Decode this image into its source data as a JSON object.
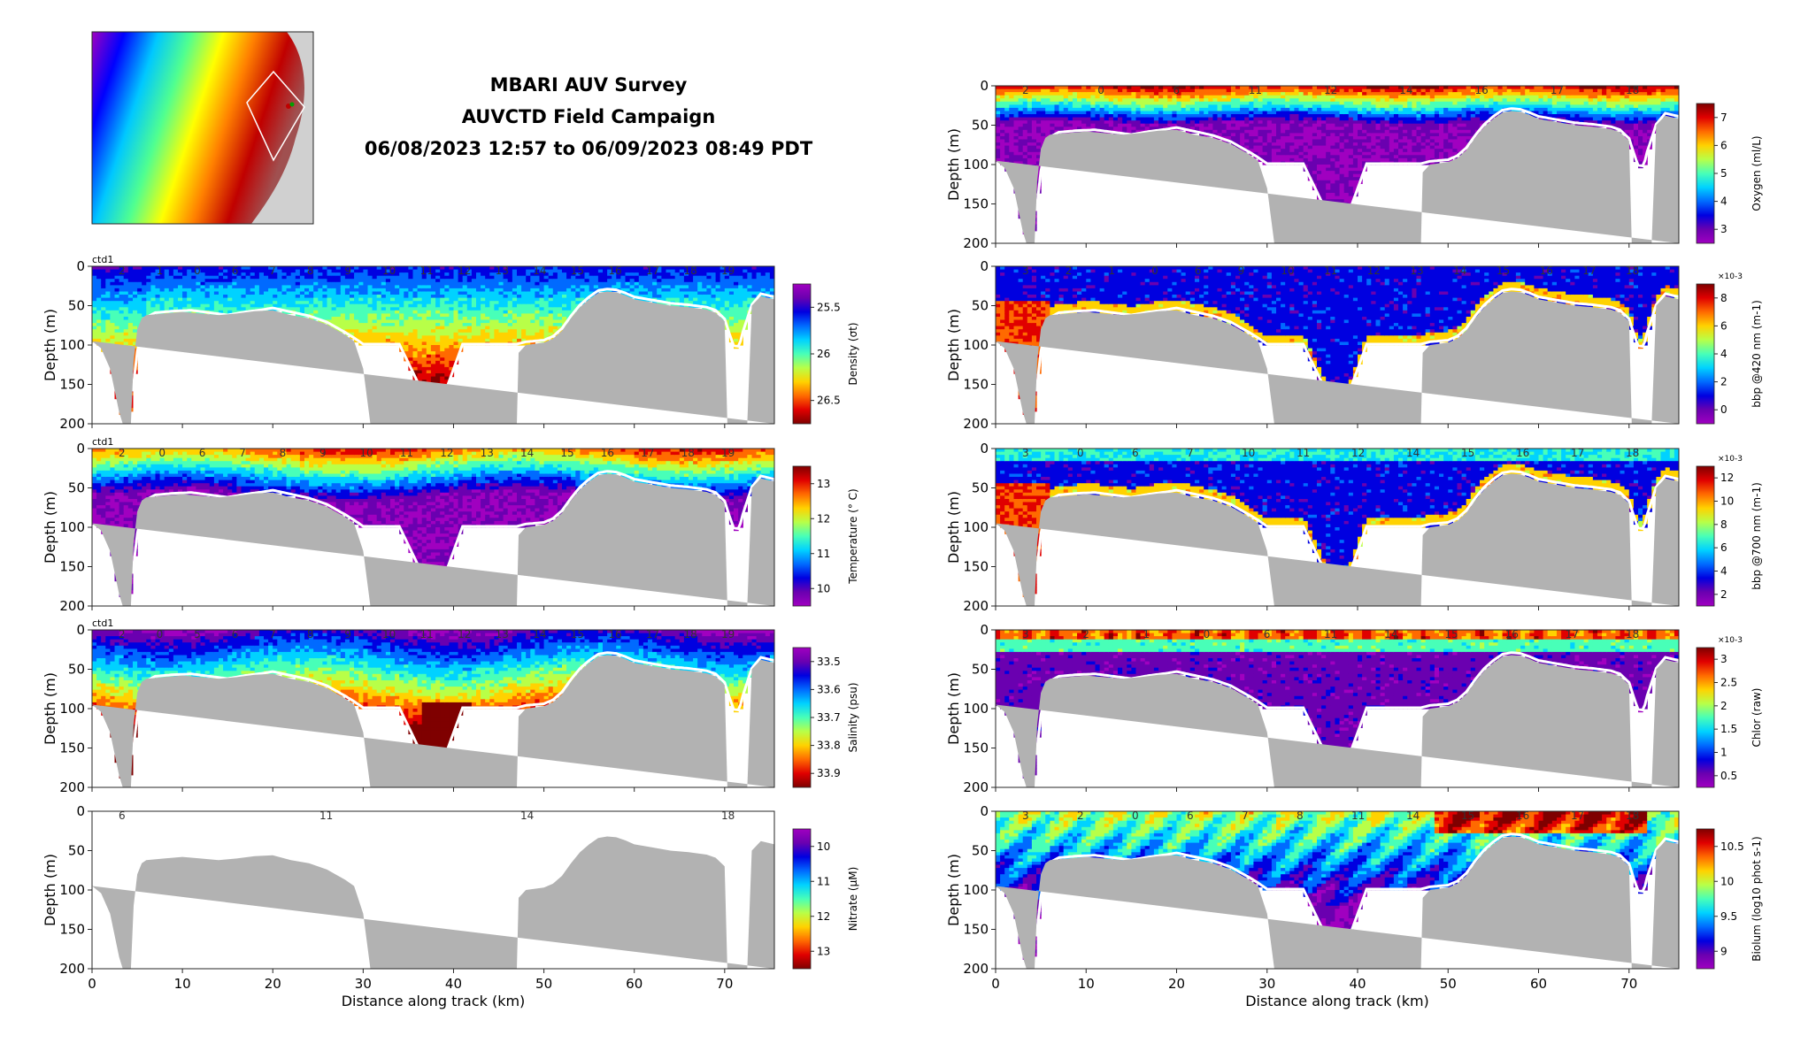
{
  "header": {
    "title": "MBARI AUV Survey",
    "campaign": "AUVCTD Field Campaign",
    "period": "06/08/2023 12:57 to 06/09/2023 08:49 PDT"
  },
  "colors": {
    "bathymetry": "#b2b2b2",
    "frame": "#262626"
  },
  "chart_data": [
    {
      "type": "heatmap",
      "panel": "density",
      "column": "left",
      "row": 1,
      "ylabel": "Depth (m)",
      "xlabel": "",
      "clabel": "Density (σt)",
      "xlim": [
        0,
        75.5
      ],
      "ylim": [
        200,
        0
      ],
      "xticks": [
        0,
        10,
        20,
        30,
        40,
        50,
        60,
        70
      ],
      "yticks": [
        0,
        50,
        100,
        150,
        200
      ],
      "cticks": [
        "25.5",
        "26",
        "26.5"
      ],
      "colormap": "jet_reversed",
      "corner_label": "ctd1",
      "profiles": [
        "2",
        "1",
        "0",
        "6",
        "7",
        "8",
        "9",
        "10",
        "11",
        "12",
        "13",
        "14",
        "15",
        "16",
        "17",
        "18",
        "19"
      ]
    },
    {
      "type": "heatmap",
      "panel": "temperature",
      "column": "left",
      "row": 2,
      "ylabel": "Depth (m)",
      "xlabel": "",
      "clabel": "Temperature (° C)",
      "xlim": [
        0,
        75.5
      ],
      "ylim": [
        200,
        0
      ],
      "xticks": [
        0,
        10,
        20,
        30,
        40,
        50,
        60,
        70
      ],
      "yticks": [
        0,
        50,
        100,
        150,
        200
      ],
      "cticks": [
        "13",
        "12",
        "11",
        "10"
      ],
      "colormap": "jet",
      "corner_label": "ctd1",
      "profiles": [
        "2",
        "0",
        "6",
        "7",
        "8",
        "9",
        "10",
        "11",
        "12",
        "13",
        "14",
        "15",
        "16",
        "17",
        "18",
        "19"
      ]
    },
    {
      "type": "heatmap",
      "panel": "salinity",
      "column": "left",
      "row": 3,
      "ylabel": "Depth (m)",
      "xlabel": "",
      "clabel": "Salinity (psu)",
      "xlim": [
        0,
        75.5
      ],
      "ylim": [
        200,
        0
      ],
      "xticks": [
        0,
        10,
        20,
        30,
        40,
        50,
        60,
        70
      ],
      "yticks": [
        0,
        50,
        100,
        150,
        200
      ],
      "cticks": [
        "33.5",
        "33.6",
        "33.7",
        "33.8",
        "33.9"
      ],
      "colormap": "jet_reversed",
      "corner_label": "ctd1",
      "profiles": [
        "2",
        "0",
        "5",
        "6",
        "7",
        "8",
        "9",
        "10",
        "11",
        "12",
        "13",
        "14",
        "15",
        "16",
        "17",
        "18",
        "19"
      ]
    },
    {
      "type": "heatmap",
      "panel": "nitrate",
      "column": "left",
      "row": 4,
      "ylabel": "Depth (m)",
      "xlabel": "Distance along track (km)",
      "clabel": "Nitrate (μM)",
      "xlim": [
        0,
        75.5
      ],
      "ylim": [
        200,
        0
      ],
      "xticks": [
        0,
        10,
        20,
        30,
        40,
        50,
        60,
        70
      ],
      "yticks": [
        0,
        50,
        100,
        150,
        200
      ],
      "cticks": [
        "10",
        "11",
        "12",
        "13"
      ],
      "colormap": "jet_reversed",
      "corner_label": "",
      "profiles": [
        "6",
        "11",
        "14",
        "18"
      ],
      "empty": true
    },
    {
      "type": "heatmap",
      "panel": "oxygen",
      "column": "right",
      "row": 0,
      "ylabel": "Depth (m)",
      "xlabel": "",
      "clabel": "Oxygen (ml/L)",
      "xlim": [
        0,
        75.5
      ],
      "ylim": [
        200,
        0
      ],
      "xticks": [
        0,
        10,
        20,
        30,
        40,
        50,
        60,
        70
      ],
      "yticks": [
        0,
        50,
        100,
        150,
        200
      ],
      "cticks": [
        "7",
        "6",
        "5",
        "4",
        "3"
      ],
      "colormap": "jet",
      "corner_label": "",
      "profiles": [
        "2",
        "0",
        "6",
        "11",
        "12",
        "14",
        "16",
        "17",
        "18"
      ]
    },
    {
      "type": "heatmap",
      "panel": "bbp420",
      "column": "right",
      "row": 1,
      "ylabel": "Depth (m)",
      "xlabel": "",
      "clabel": "bbp @420 nm (m-1)",
      "cscale": "×10-3",
      "xlim": [
        0,
        75.5
      ],
      "ylim": [
        200,
        0
      ],
      "xticks": [
        0,
        10,
        20,
        30,
        40,
        50,
        60,
        70
      ],
      "yticks": [
        0,
        50,
        100,
        150,
        200
      ],
      "cticks": [
        "8",
        "6",
        "4",
        "2",
        "0"
      ],
      "colormap": "jet",
      "corner_label": "",
      "profiles": [
        "3",
        "2",
        "1",
        "0",
        "6",
        "9",
        "10",
        "11",
        "12",
        "13",
        "14",
        "15",
        "16",
        "17",
        "18"
      ]
    },
    {
      "type": "heatmap",
      "panel": "bbp700",
      "column": "right",
      "row": 2,
      "ylabel": "Depth (m)",
      "xlabel": "",
      "clabel": "bbp @700 nm (m-1)",
      "cscale": "×10-3",
      "xlim": [
        0,
        75.5
      ],
      "ylim": [
        200,
        0
      ],
      "xticks": [
        0,
        10,
        20,
        30,
        40,
        50,
        60,
        70
      ],
      "yticks": [
        0,
        50,
        100,
        150,
        200
      ],
      "cticks": [
        "12",
        "10",
        "8",
        "6",
        "4",
        "2"
      ],
      "colormap": "jet",
      "corner_label": "",
      "profiles": [
        "3",
        "0",
        "6",
        "7",
        "10",
        "11",
        "12",
        "14",
        "15",
        "16",
        "17",
        "18"
      ]
    },
    {
      "type": "heatmap",
      "panel": "chlorophyll",
      "column": "right",
      "row": 3,
      "ylabel": "Depth (m)",
      "xlabel": "",
      "clabel": "Chlor (raw)",
      "cscale": "×10-3",
      "xlim": [
        0,
        75.5
      ],
      "ylim": [
        200,
        0
      ],
      "xticks": [
        0,
        10,
        20,
        30,
        40,
        50,
        60,
        70
      ],
      "yticks": [
        0,
        50,
        100,
        150,
        200
      ],
      "cticks": [
        "3",
        "2.5",
        "2",
        "1.5",
        "1",
        "0.5"
      ],
      "colormap": "jet",
      "corner_label": "",
      "profiles": [
        "3",
        "2",
        "1",
        "0",
        "6",
        "11",
        "14",
        "15",
        "16",
        "17",
        "18"
      ]
    },
    {
      "type": "heatmap",
      "panel": "biolum",
      "column": "right",
      "row": 4,
      "ylabel": "Depth (m)",
      "xlabel": "Distance along track (km)",
      "clabel": "Biolum (log10 phot s-1)",
      "xlim": [
        0,
        75.5
      ],
      "ylim": [
        200,
        0
      ],
      "xticks": [
        0,
        10,
        20,
        30,
        40,
        50,
        60,
        70
      ],
      "yticks": [
        0,
        50,
        100,
        150,
        200
      ],
      "cticks": [
        "10.5",
        "10",
        "9.5",
        "9"
      ],
      "colormap": "jet",
      "corner_label": "",
      "profiles": [
        "3",
        "2",
        "0",
        "6",
        "7",
        "8",
        "11",
        "14",
        "15",
        "16",
        "17",
        "18"
      ]
    }
  ]
}
